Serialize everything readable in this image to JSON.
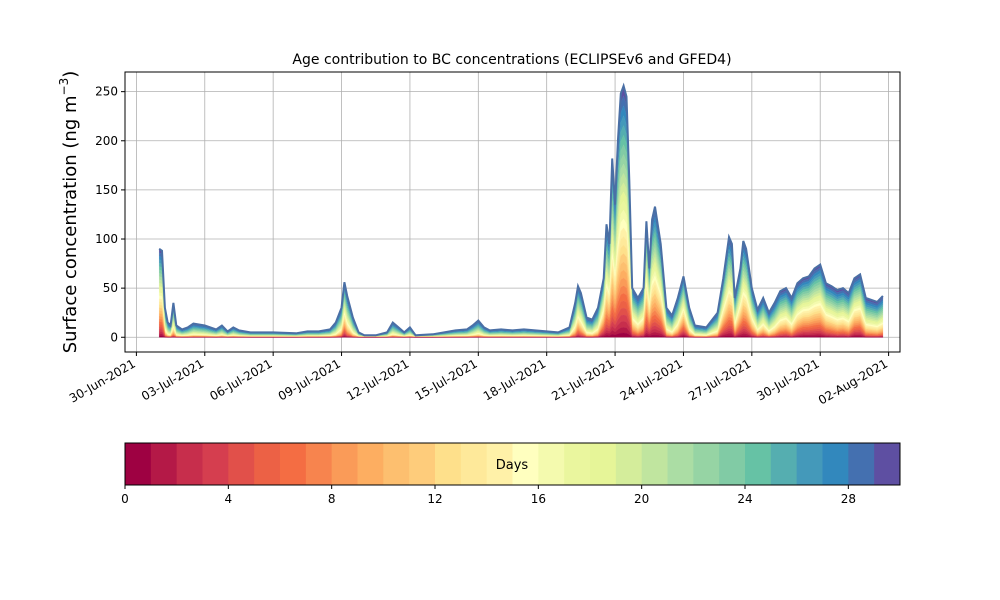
{
  "chart_data": {
    "type": "area",
    "subtype": "stacked",
    "title": "Age contribution to BC concentrations (ECLIPSEv6 and GFED4)",
    "ylabel_main": "Surface concentration (ng m",
    "ylabel_sup": "−3",
    "ylabel_close": ")",
    "xlabel": "",
    "ylim": [
      -15,
      270
    ],
    "yticks": [
      0,
      50,
      100,
      150,
      200,
      250
    ],
    "xlim": [
      "2021-06-29T12:00",
      "2021-08-02T12:00"
    ],
    "xticks": [
      "2021-06-30",
      "2021-07-03",
      "2021-07-06",
      "2021-07-09",
      "2021-07-12",
      "2021-07-15",
      "2021-07-18",
      "2021-07-21",
      "2021-07-24",
      "2021-07-27",
      "2021-07-30",
      "2021-08-02"
    ],
    "xtick_labels": [
      "30-Jun-2021",
      "03-Jul-2021",
      "06-Jul-2021",
      "09-Jul-2021",
      "12-Jul-2021",
      "15-Jul-2021",
      "18-Jul-2021",
      "21-Jul-2021",
      "24-Jul-2021",
      "27-Jul-2021",
      "30-Jul-2021",
      "02-Aug-2021"
    ],
    "grid": true,
    "total_line_color": "#4a6fa5",
    "total": [
      [
        "2021-07-01T00:00",
        90
      ],
      [
        "2021-07-01T03:00",
        88
      ],
      [
        "2021-07-01T06:00",
        30
      ],
      [
        "2021-07-01T09:00",
        15
      ],
      [
        "2021-07-01T12:00",
        12
      ],
      [
        "2021-07-01T15:00",
        35
      ],
      [
        "2021-07-01T18:00",
        12
      ],
      [
        "2021-07-02T00:00",
        8
      ],
      [
        "2021-07-02T06:00",
        10
      ],
      [
        "2021-07-02T12:00",
        14
      ],
      [
        "2021-07-03T00:00",
        12
      ],
      [
        "2021-07-03T12:00",
        8
      ],
      [
        "2021-07-03T18:00",
        12
      ],
      [
        "2021-07-04T00:00",
        6
      ],
      [
        "2021-07-04T06:00",
        10
      ],
      [
        "2021-07-04T12:00",
        7
      ],
      [
        "2021-07-05T00:00",
        5
      ],
      [
        "2021-07-06T00:00",
        5
      ],
      [
        "2021-07-07T00:00",
        4
      ],
      [
        "2021-07-07T12:00",
        6
      ],
      [
        "2021-07-08T00:00",
        6
      ],
      [
        "2021-07-08T12:00",
        8
      ],
      [
        "2021-07-08T18:00",
        15
      ],
      [
        "2021-07-09T00:00",
        30
      ],
      [
        "2021-07-09T03:00",
        56
      ],
      [
        "2021-07-09T06:00",
        42
      ],
      [
        "2021-07-09T12:00",
        20
      ],
      [
        "2021-07-09T18:00",
        5
      ],
      [
        "2021-07-10T00:00",
        2
      ],
      [
        "2021-07-10T12:00",
        2
      ],
      [
        "2021-07-11T00:00",
        5
      ],
      [
        "2021-07-11T06:00",
        15
      ],
      [
        "2021-07-11T12:00",
        10
      ],
      [
        "2021-07-11T18:00",
        5
      ],
      [
        "2021-07-12T00:00",
        10
      ],
      [
        "2021-07-12T06:00",
        2
      ],
      [
        "2021-07-13T00:00",
        3
      ],
      [
        "2021-07-13T12:00",
        5
      ],
      [
        "2021-07-14T00:00",
        7
      ],
      [
        "2021-07-14T12:00",
        8
      ],
      [
        "2021-07-14T18:00",
        12
      ],
      [
        "2021-07-15T00:00",
        17
      ],
      [
        "2021-07-15T06:00",
        10
      ],
      [
        "2021-07-15T12:00",
        7
      ],
      [
        "2021-07-16T00:00",
        8
      ],
      [
        "2021-07-16T12:00",
        7
      ],
      [
        "2021-07-17T00:00",
        8
      ],
      [
        "2021-07-17T12:00",
        7
      ],
      [
        "2021-07-18T00:00",
        6
      ],
      [
        "2021-07-18T12:00",
        5
      ],
      [
        "2021-07-19T00:00",
        10
      ],
      [
        "2021-07-19T06:00",
        35
      ],
      [
        "2021-07-19T09:00",
        52
      ],
      [
        "2021-07-19T12:00",
        45
      ],
      [
        "2021-07-19T18:00",
        20
      ],
      [
        "2021-07-20T00:00",
        18
      ],
      [
        "2021-07-20T06:00",
        30
      ],
      [
        "2021-07-20T12:00",
        60
      ],
      [
        "2021-07-20T15:00",
        115
      ],
      [
        "2021-07-20T18:00",
        95
      ],
      [
        "2021-07-20T21:00",
        182
      ],
      [
        "2021-07-21T00:00",
        135
      ],
      [
        "2021-07-21T03:00",
        200
      ],
      [
        "2021-07-21T06:00",
        248
      ],
      [
        "2021-07-21T09:00",
        256
      ],
      [
        "2021-07-21T12:00",
        245
      ],
      [
        "2021-07-21T15:00",
        160
      ],
      [
        "2021-07-21T18:00",
        50
      ],
      [
        "2021-07-22T00:00",
        40
      ],
      [
        "2021-07-22T06:00",
        50
      ],
      [
        "2021-07-22T09:00",
        118
      ],
      [
        "2021-07-22T12:00",
        70
      ],
      [
        "2021-07-22T15:00",
        120
      ],
      [
        "2021-07-22T18:00",
        133
      ],
      [
        "2021-07-23T00:00",
        95
      ],
      [
        "2021-07-23T06:00",
        30
      ],
      [
        "2021-07-23T12:00",
        22
      ],
      [
        "2021-07-23T18:00",
        40
      ],
      [
        "2021-07-24T00:00",
        62
      ],
      [
        "2021-07-24T06:00",
        30
      ],
      [
        "2021-07-24T12:00",
        12
      ],
      [
        "2021-07-25T00:00",
        10
      ],
      [
        "2021-07-25T12:00",
        25
      ],
      [
        "2021-07-25T18:00",
        60
      ],
      [
        "2021-07-26T00:00",
        102
      ],
      [
        "2021-07-26T03:00",
        95
      ],
      [
        "2021-07-26T06:00",
        40
      ],
      [
        "2021-07-26T12:00",
        70
      ],
      [
        "2021-07-26T15:00",
        98
      ],
      [
        "2021-07-26T18:00",
        90
      ],
      [
        "2021-07-27T00:00",
        50
      ],
      [
        "2021-07-27T06:00",
        28
      ],
      [
        "2021-07-27T12:00",
        40
      ],
      [
        "2021-07-27T18:00",
        25
      ],
      [
        "2021-07-28T00:00",
        35
      ],
      [
        "2021-07-28T06:00",
        47
      ],
      [
        "2021-07-28T12:00",
        50
      ],
      [
        "2021-07-28T18:00",
        40
      ],
      [
        "2021-07-29T00:00",
        55
      ],
      [
        "2021-07-29T06:00",
        60
      ],
      [
        "2021-07-29T12:00",
        62
      ],
      [
        "2021-07-29T18:00",
        70
      ],
      [
        "2021-07-30T00:00",
        74
      ],
      [
        "2021-07-30T06:00",
        55
      ],
      [
        "2021-07-30T12:00",
        52
      ],
      [
        "2021-07-30T18:00",
        48
      ],
      [
        "2021-07-31T00:00",
        50
      ],
      [
        "2021-07-31T06:00",
        45
      ],
      [
        "2021-07-31T12:00",
        60
      ],
      [
        "2021-07-31T18:00",
        64
      ],
      [
        "2021-08-01T00:00",
        40
      ],
      [
        "2021-08-01T06:00",
        38
      ],
      [
        "2021-08-01T12:00",
        36
      ],
      [
        "2021-08-01T18:00",
        42
      ]
    ],
    "fresh_share_note_free": true,
    "colorbar": {
      "label": "Days",
      "ticks": [
        0,
        4,
        8,
        12,
        16,
        20,
        24,
        28
      ],
      "range": [
        0,
        30
      ],
      "bins": 30,
      "colors": [
        "#9e0142",
        "#b41947",
        "#c72e4c",
        "#d53e4f",
        "#e1504a",
        "#ec6145",
        "#f46d43",
        "#f7844e",
        "#fa9b58",
        "#fdae61",
        "#fdbf6f",
        "#fecc7b",
        "#fee08b",
        "#fee99a",
        "#fff1a8",
        "#ffffbf",
        "#f4faae",
        "#eaf69e",
        "#e6f598",
        "#d4ed9b",
        "#c0e59f",
        "#abdda4",
        "#96d4a4",
        "#81cba5",
        "#66c2a5",
        "#55aeb0",
        "#4499ba",
        "#3288bd",
        "#4470b0",
        "#5e4fa2"
      ]
    }
  }
}
